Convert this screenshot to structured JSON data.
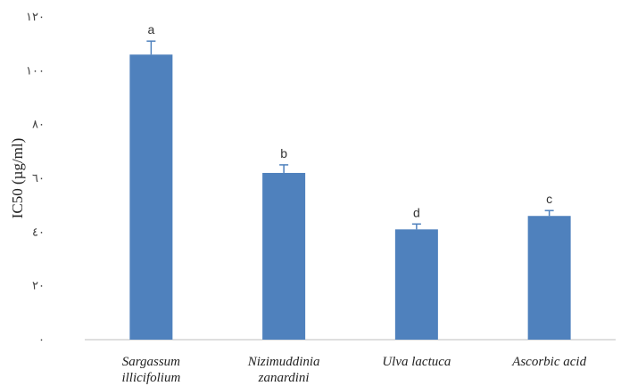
{
  "chart_data": {
    "type": "bar",
    "title": "",
    "xlabel": "",
    "ylabel": "IC50 (µg/ml)",
    "ylim": [
      0,
      120
    ],
    "y_ticks": [
      0,
      20,
      40,
      60,
      80,
      100,
      120
    ],
    "y_tick_labels": [
      "٠",
      "٢٠",
      "٤٠",
      "٦٠",
      "٨٠",
      "١٠٠",
      "١٢٠"
    ],
    "categories": [
      [
        "Sargassum",
        "illicifolium"
      ],
      [
        "Nizimuddinia",
        "zanardini"
      ],
      [
        "Ulva lactuca"
      ],
      [
        "Ascorbic acid"
      ]
    ],
    "values": [
      106,
      62,
      41,
      46
    ],
    "errors": [
      5,
      3,
      2,
      2
    ],
    "significance": [
      "a",
      "b",
      "d",
      "c"
    ],
    "grid": false,
    "legend": "none",
    "colors": {
      "bar": "#4F81BD",
      "error_bar": "#4F81BD",
      "axis": "#bfbfbf"
    }
  }
}
